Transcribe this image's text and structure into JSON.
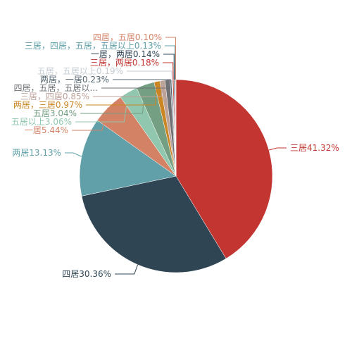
{
  "chart_data": {
    "type": "pie",
    "categories": [
      "三居",
      "四居",
      "两居",
      "一居",
      "五居以上",
      "五居",
      "两居，三居",
      "三居，四居",
      "四居，五居，五居以...",
      "两居，一居",
      "五居，五居以上",
      "三居，两居",
      "一居，两居",
      "三居，四居，五居，五居以上",
      "四居，五居"
    ],
    "values": [
      41.32,
      30.36,
      13.13,
      5.44,
      3.06,
      3.04,
      0.97,
      0.85,
      0.86,
      0.23,
      0.19,
      0.18,
      0.14,
      0.13,
      0.1
    ],
    "value_labels": [
      "41.32%",
      "30.36%",
      "13.13%",
      "5.44%",
      "3.06%",
      "3.04%",
      "0.97%",
      "0.85%",
      null,
      "0.23%",
      "0.19%",
      "0.18%",
      "0.14%",
      "0.13%",
      "0.10%"
    ],
    "colors": [
      "#c23531",
      "#2f4554",
      "#61a0a8",
      "#d48265",
      "#91c7ae",
      "#749f83",
      "#ca8622",
      "#bda29a",
      "#6e7074",
      "#546570",
      "#c4ccd3",
      "#c23531",
      "#2f4554",
      "#61a0a8",
      "#d48265"
    ]
  }
}
